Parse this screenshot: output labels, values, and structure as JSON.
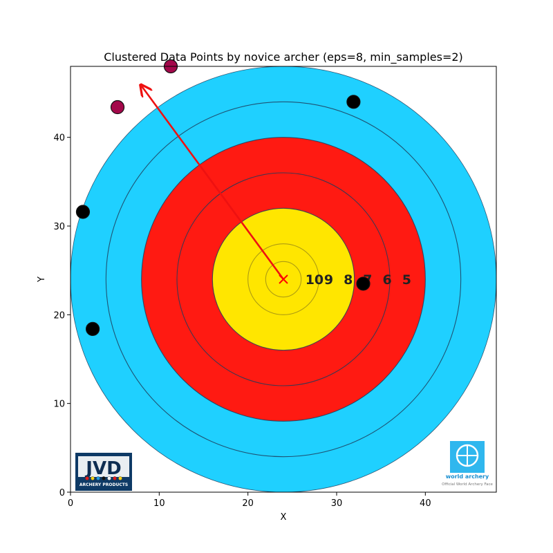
{
  "chart_data": {
    "type": "scatter",
    "title": "Clustered Data Points by novice archer (eps=8, min_samples=2)",
    "xlabel": "X",
    "ylabel": "Y",
    "xlim": [
      0,
      48
    ],
    "ylim": [
      0,
      48
    ],
    "x_ticks": [
      0,
      10,
      20,
      30,
      40
    ],
    "y_ticks": [
      0,
      10,
      20,
      30,
      40
    ],
    "grid": false,
    "background_image": "world-archery-target-face",
    "target": {
      "center": [
        24,
        24
      ],
      "ring_numbers": [
        "10",
        "9",
        "8",
        "7",
        "6",
        "5"
      ],
      "colors": {
        "gold": "#ffe600",
        "red": "#ff1a12",
        "blue": "#1fd0ff",
        "ring_line": "#1f3c5a"
      }
    },
    "center_marker": {
      "x": 24,
      "y": 24,
      "symbol": "x",
      "color": "#ff0000"
    },
    "arrow": {
      "from": [
        24,
        24
      ],
      "to": [
        8,
        45.8
      ],
      "color": "#ee1111"
    },
    "series": [
      {
        "cluster": 0,
        "color": "#a3084a",
        "points": [
          {
            "x": 5.3,
            "y": 43.4
          },
          {
            "x": 11.3,
            "y": 48.0
          }
        ]
      },
      {
        "cluster": -1,
        "color": "#000000",
        "points": [
          {
            "x": 31.9,
            "y": 44.0
          },
          {
            "x": 1.4,
            "y": 31.6
          },
          {
            "x": 2.5,
            "y": 18.4
          },
          {
            "x": 33.0,
            "y": 23.5
          }
        ]
      }
    ],
    "logos": {
      "left": {
        "text": "JVD",
        "subtext": "ARCHERY PRODUCTS"
      },
      "right": {
        "text": "world archery",
        "subtext": "Official World Archery Face"
      }
    }
  }
}
